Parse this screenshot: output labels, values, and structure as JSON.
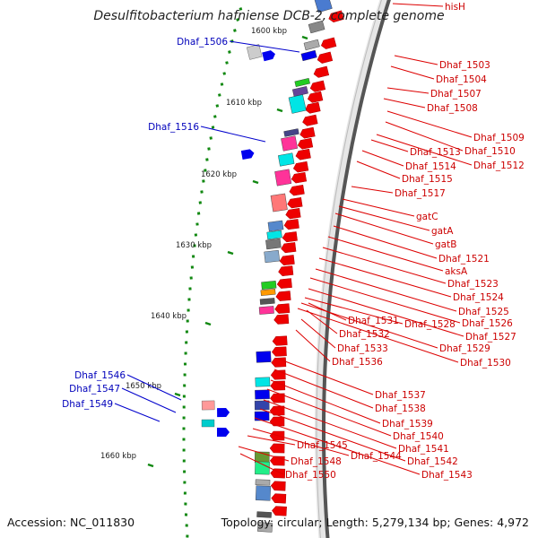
{
  "title": "Desulfitobacterium hafniense DCB-2, complete genome",
  "accession": "Accession: NC_011830",
  "summary": "Topology: circular; Length: 5,279,134 bp; Genes: 4,972",
  "colors": {
    "gene_red": "#ee0000",
    "gene_blue": "#0000ee",
    "label_red": "#cc0000",
    "label_blue": "#0000bb",
    "tick_green": "#118811"
  },
  "kbp_ticks": [
    {
      "text": "1600 kbp",
      "pos": 1600
    },
    {
      "text": "1610 kbp",
      "pos": 1610
    },
    {
      "text": "1620 kbp",
      "pos": 1620
    },
    {
      "text": "1630 kbp",
      "pos": 1630
    },
    {
      "text": "1640 kbp",
      "pos": 1640
    },
    {
      "text": "1650 kbp",
      "pos": 1650
    },
    {
      "text": "1660 kbp",
      "pos": 1660
    }
  ],
  "labels_right": [
    "hisH",
    "Dhaf_1503",
    "Dhaf_1504",
    "Dhaf_1507",
    "Dhaf_1508",
    "Dhaf_1509",
    "Dhaf_1510",
    "Dhaf_1512",
    "Dhaf_1513",
    "Dhaf_1514",
    "Dhaf_1515",
    "Dhaf_1517",
    "gatC",
    "gatA",
    "gatB",
    "Dhaf_1521",
    "aksA",
    "Dhaf_1523",
    "Dhaf_1524",
    "Dhaf_1525",
    "Dhaf_1526",
    "Dhaf_1527",
    "Dhaf_1528",
    "Dhaf_1529",
    "Dhaf_1530",
    "Dhaf_1531",
    "Dhaf_1532",
    "Dhaf_1533",
    "Dhaf_1536",
    "Dhaf_1537",
    "Dhaf_1538",
    "Dhaf_1539",
    "Dhaf_1540",
    "Dhaf_1541",
    "Dhaf_1542",
    "Dhaf_1543",
    "Dhaf_1544",
    "Dhaf_1545",
    "Dhaf_1548",
    "Dhaf_1550"
  ],
  "labels_left": [
    "Dhaf_1506",
    "Dhaf_1516",
    "Dhaf_1546",
    "Dhaf_1547",
    "Dhaf_1549"
  ]
}
